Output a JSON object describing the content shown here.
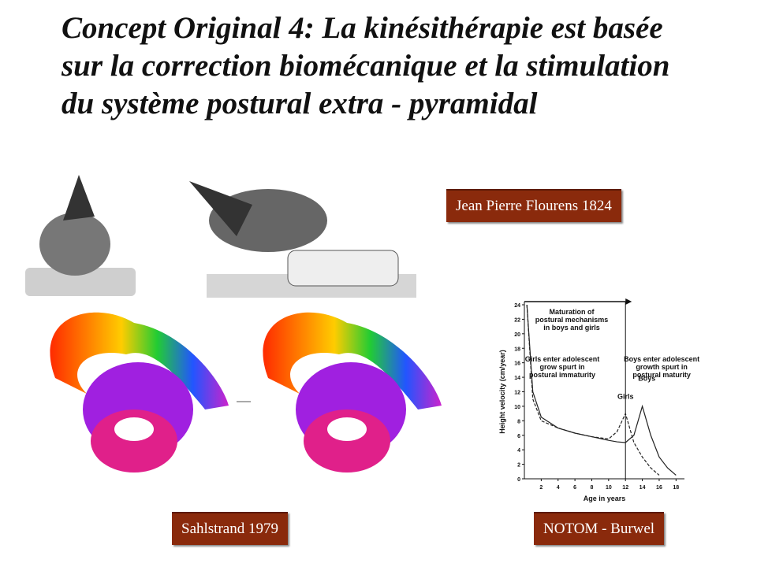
{
  "title": "Concept Original 4: La kinésithérapie est basée sur la correction biomécanique et la stimulation du système postural extra - pyramidal",
  "captions": [
    "Jean Pierre Flourens 1824",
    "Sahlstrand 1979",
    "NOTOM - Burwel"
  ],
  "chart_data": {
    "type": "line",
    "x_label": "Age in years",
    "y_label": "Height velocity (cm/year)",
    "x": [
      0.3,
      1,
      2,
      4,
      6,
      8,
      10,
      11,
      12,
      13,
      14,
      15,
      16,
      17,
      18
    ],
    "series": [
      {
        "name": "Boys",
        "color": "#222222",
        "values": [
          24,
          12,
          8.5,
          7,
          6.3,
          5.8,
          5.3,
          5.1,
          5,
          6,
          10,
          6,
          3,
          1.5,
          0.5
        ]
      },
      {
        "name": "Girls",
        "color": "#222222",
        "values": [
          24,
          11,
          8,
          7,
          6.3,
          5.8,
          5.5,
          6.5,
          9,
          5,
          3,
          1.5,
          0.5,
          null,
          null
        ]
      }
    ],
    "annotations": [
      [
        "Maturation of",
        "postural mechanisms",
        "in boys and girls"
      ],
      [
        "Girls enter adolescent",
        "grow spurt in",
        "postural immaturity"
      ],
      [
        "Boys enter adolescent",
        "growth spurt in",
        "postural maturity"
      ]
    ],
    "xlim": [
      0,
      19
    ],
    "xticks": [
      2,
      4,
      6,
      8,
      10,
      12,
      14,
      16,
      18
    ],
    "ylim": [
      0,
      24
    ],
    "yticks": [
      0,
      2,
      4,
      6,
      8,
      10,
      12,
      14,
      16,
      18,
      20,
      22,
      24
    ]
  }
}
